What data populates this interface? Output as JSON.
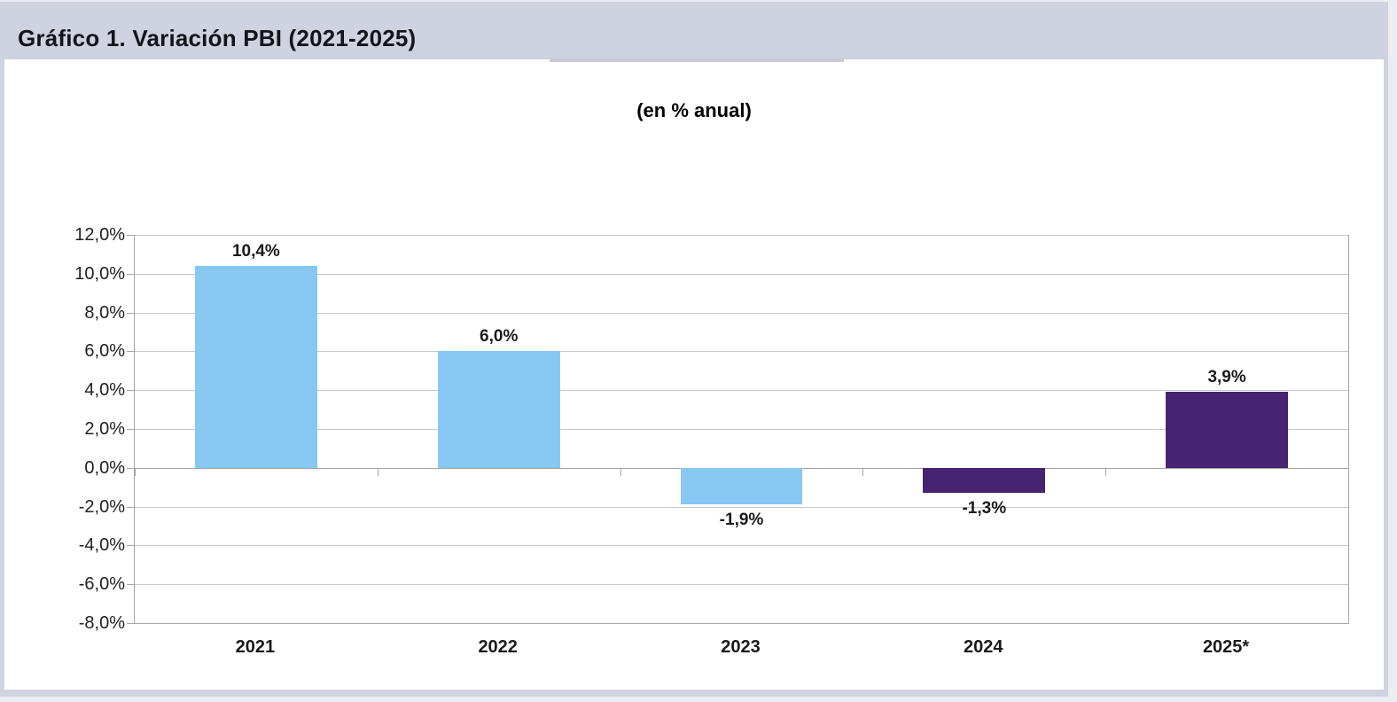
{
  "page": {
    "title": "Gráfico 1. Variación PBI (2021-2025)"
  },
  "chart_data": {
    "type": "bar",
    "title": "Gráfico 1. Variación PBI (2021-2025)",
    "subtitle": "(en % anual)",
    "categories": [
      "2021",
      "2022",
      "2023",
      "2024",
      "2025*"
    ],
    "values": [
      10.4,
      6.0,
      -1.9,
      -1.3,
      3.9
    ],
    "value_labels": [
      "10,4%",
      "6,0%",
      "-1,9%",
      "-1,3%",
      "3,9%"
    ],
    "bar_colors": [
      "#86C8F2",
      "#86C8F2",
      "#86C8F2",
      "#472372",
      "#472372"
    ],
    "ylim": [
      -8,
      12
    ],
    "ytick_step": 2,
    "ytick_labels": [
      "12,0%",
      "10,0%",
      "8,0%",
      "6,0%",
      "4,0%",
      "2,0%",
      "0,0%",
      "-2,0%",
      "-4,0%",
      "-6,0%",
      "-8,0%"
    ],
    "xlabel": "",
    "ylabel": "",
    "grid": true,
    "legend": false,
    "colors": {
      "bar_blue": "#86C8F2",
      "bar_purple": "#472372",
      "gridline": "#C7C7C7",
      "axis": "#A6A6A6",
      "header_band": "#CED3DF",
      "page_edge": "#ECEDF2",
      "label_text": "#1A1A1A"
    }
  }
}
